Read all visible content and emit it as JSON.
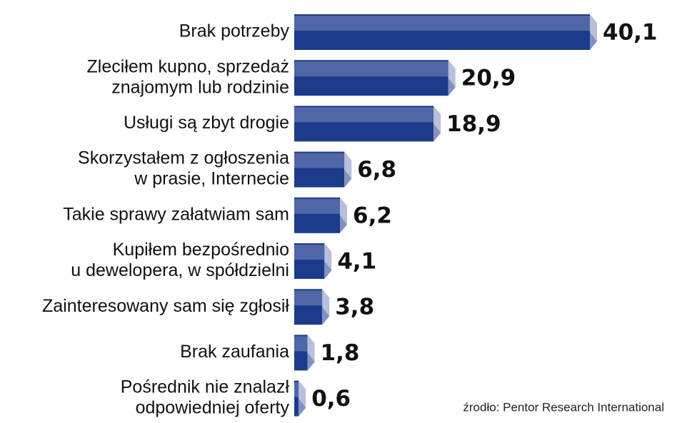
{
  "chart_data": {
    "type": "bar",
    "orientation": "horizontal",
    "categories": [
      [
        "Brak potrzeby"
      ],
      [
        "Zleciłem kupno, sprzedaż",
        "znajomym lub rodzinie"
      ],
      [
        "Usługi są zbyt drogie"
      ],
      [
        "Skorzystałem z ogłoszenia",
        "w prasie, Internecie"
      ],
      [
        "Takie sprawy załatwiam sam"
      ],
      [
        "Kupiłem bezpośrednio",
        "u dewelopera, w spółdzielni"
      ],
      [
        "Zainteresowany sam się zgłosił"
      ],
      [
        "Brak zaufania"
      ],
      [
        "Pośrednik nie znalazł",
        "odpowiedniej oferty"
      ]
    ],
    "values": [
      40.1,
      20.9,
      18.9,
      6.8,
      6.2,
      4.1,
      3.8,
      1.8,
      0.6
    ],
    "value_labels": [
      "40,1",
      "20,9",
      "18,9",
      "6,8",
      "6,2",
      "4,1",
      "3,8",
      "1,8",
      "0,6"
    ],
    "colors": {
      "top": "#4f67a6",
      "bottom": "#1c3b8c",
      "cap": "#b7bfdc"
    },
    "source": "źrodło: Pentor Research International"
  }
}
